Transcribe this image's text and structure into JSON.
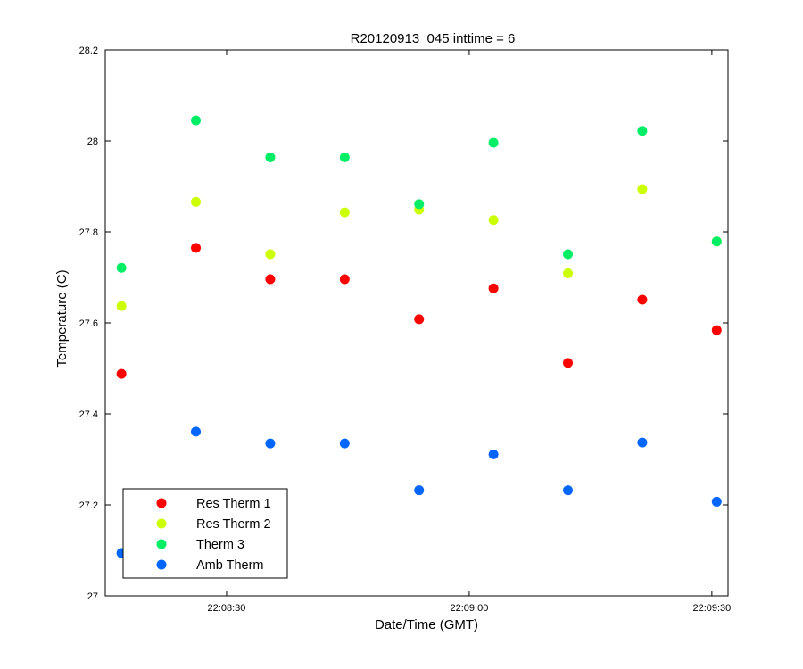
{
  "chart_data": {
    "type": "scatter",
    "title": "R20120913_045 inttime = 6",
    "xlabel": "Date/Time (GMT)",
    "ylabel": "Temperature (C)",
    "x_unit": "seconds",
    "xlim": [
      9,
      86
    ],
    "ylim": [
      27,
      28.2
    ],
    "xticks": [
      {
        "value": 24,
        "label": "22:08:30"
      },
      {
        "value": 54,
        "label": "22:09:00"
      },
      {
        "value": 84,
        "label": "22:09:30"
      }
    ],
    "yticks": [
      {
        "value": 27,
        "label": "27"
      },
      {
        "value": 27.2,
        "label": "27.2"
      },
      {
        "value": 27.4,
        "label": "27.4"
      },
      {
        "value": 27.6,
        "label": "27.6"
      },
      {
        "value": 27.8,
        "label": "27.8"
      },
      {
        "value": 28,
        "label": "28"
      },
      {
        "value": 28.2,
        "label": "28.2"
      }
    ],
    "grid": false,
    "legend_position": "bottom-left",
    "series": [
      {
        "name": "Res Therm 1",
        "color": "#ff0000",
        "x": [
          11,
          20.2,
          29.4,
          38.6,
          47.8,
          57,
          66.2,
          75.4,
          84.6
        ],
        "y": [
          27.488,
          27.765,
          27.696,
          27.696,
          27.608,
          27.676,
          27.512,
          27.651,
          27.584
        ]
      },
      {
        "name": "Res Therm 2",
        "color": "#ccff00",
        "x": [
          11,
          20.2,
          29.4,
          38.6,
          47.8,
          57,
          66.2,
          75.4,
          84.6
        ],
        "y": [
          27.637,
          27.866,
          27.751,
          27.843,
          27.849,
          27.826,
          27.709,
          27.894,
          27.779
        ]
      },
      {
        "name": "Therm 3",
        "color": "#00ee66",
        "x": [
          11,
          20.2,
          29.4,
          38.6,
          47.8,
          57,
          66.2,
          75.4,
          84.6
        ],
        "y": [
          27.721,
          28.045,
          27.964,
          27.964,
          27.861,
          27.996,
          27.751,
          28.022,
          27.779
        ]
      },
      {
        "name": "Amb Therm",
        "color": "#0066ff",
        "x": [
          11,
          20.2,
          29.4,
          38.6,
          47.8,
          57,
          66.2,
          75.4,
          84.6
        ],
        "y": [
          27.094,
          27.361,
          27.335,
          27.335,
          27.232,
          27.311,
          27.232,
          27.337,
          27.207
        ]
      }
    ]
  }
}
